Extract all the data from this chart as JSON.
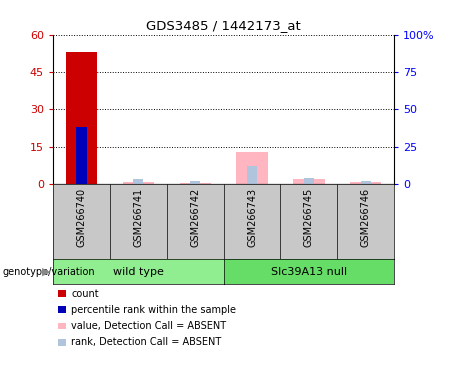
{
  "title": "GDS3485 / 1442173_at",
  "samples": [
    "GSM266740",
    "GSM266741",
    "GSM266742",
    "GSM266743",
    "GSM266745",
    "GSM266746"
  ],
  "count_values": [
    53,
    0,
    0,
    0,
    0,
    0
  ],
  "rank_pct_values": [
    38,
    0,
    0,
    0,
    0,
    0
  ],
  "absent_value_values": [
    0,
    0.8,
    0.5,
    13.0,
    2.0,
    0.8
  ],
  "absent_rank_pct_values": [
    0,
    3.5,
    2.0,
    12.5,
    4.5,
    2.5
  ],
  "left_ylim": [
    0,
    60
  ],
  "right_ylim": [
    0,
    100
  ],
  "left_yticks": [
    0,
    15,
    30,
    45,
    60
  ],
  "right_yticks": [
    0,
    25,
    50,
    75,
    100
  ],
  "right_yticklabels": [
    "0",
    "25",
    "50",
    "75",
    "100%"
  ],
  "count_color": "#CC0000",
  "rank_color": "#0000BB",
  "absent_value_color": "#FFB6C1",
  "absent_rank_color": "#B0C4DE",
  "sample_box_color": "#C8C8C8",
  "wt_color": "#90EE90",
  "null_color": "#66DD66",
  "groups": [
    {
      "name": "wild type",
      "start": 0,
      "end": 2
    },
    {
      "name": "Slc39A13 null",
      "start": 3,
      "end": 5
    }
  ],
  "legend_items": [
    {
      "label": "count",
      "color": "#CC0000"
    },
    {
      "label": "percentile rank within the sample",
      "color": "#0000BB"
    },
    {
      "label": "value, Detection Call = ABSENT",
      "color": "#FFB6C1"
    },
    {
      "label": "rank, Detection Call = ABSENT",
      "color": "#B0C4DE"
    }
  ]
}
